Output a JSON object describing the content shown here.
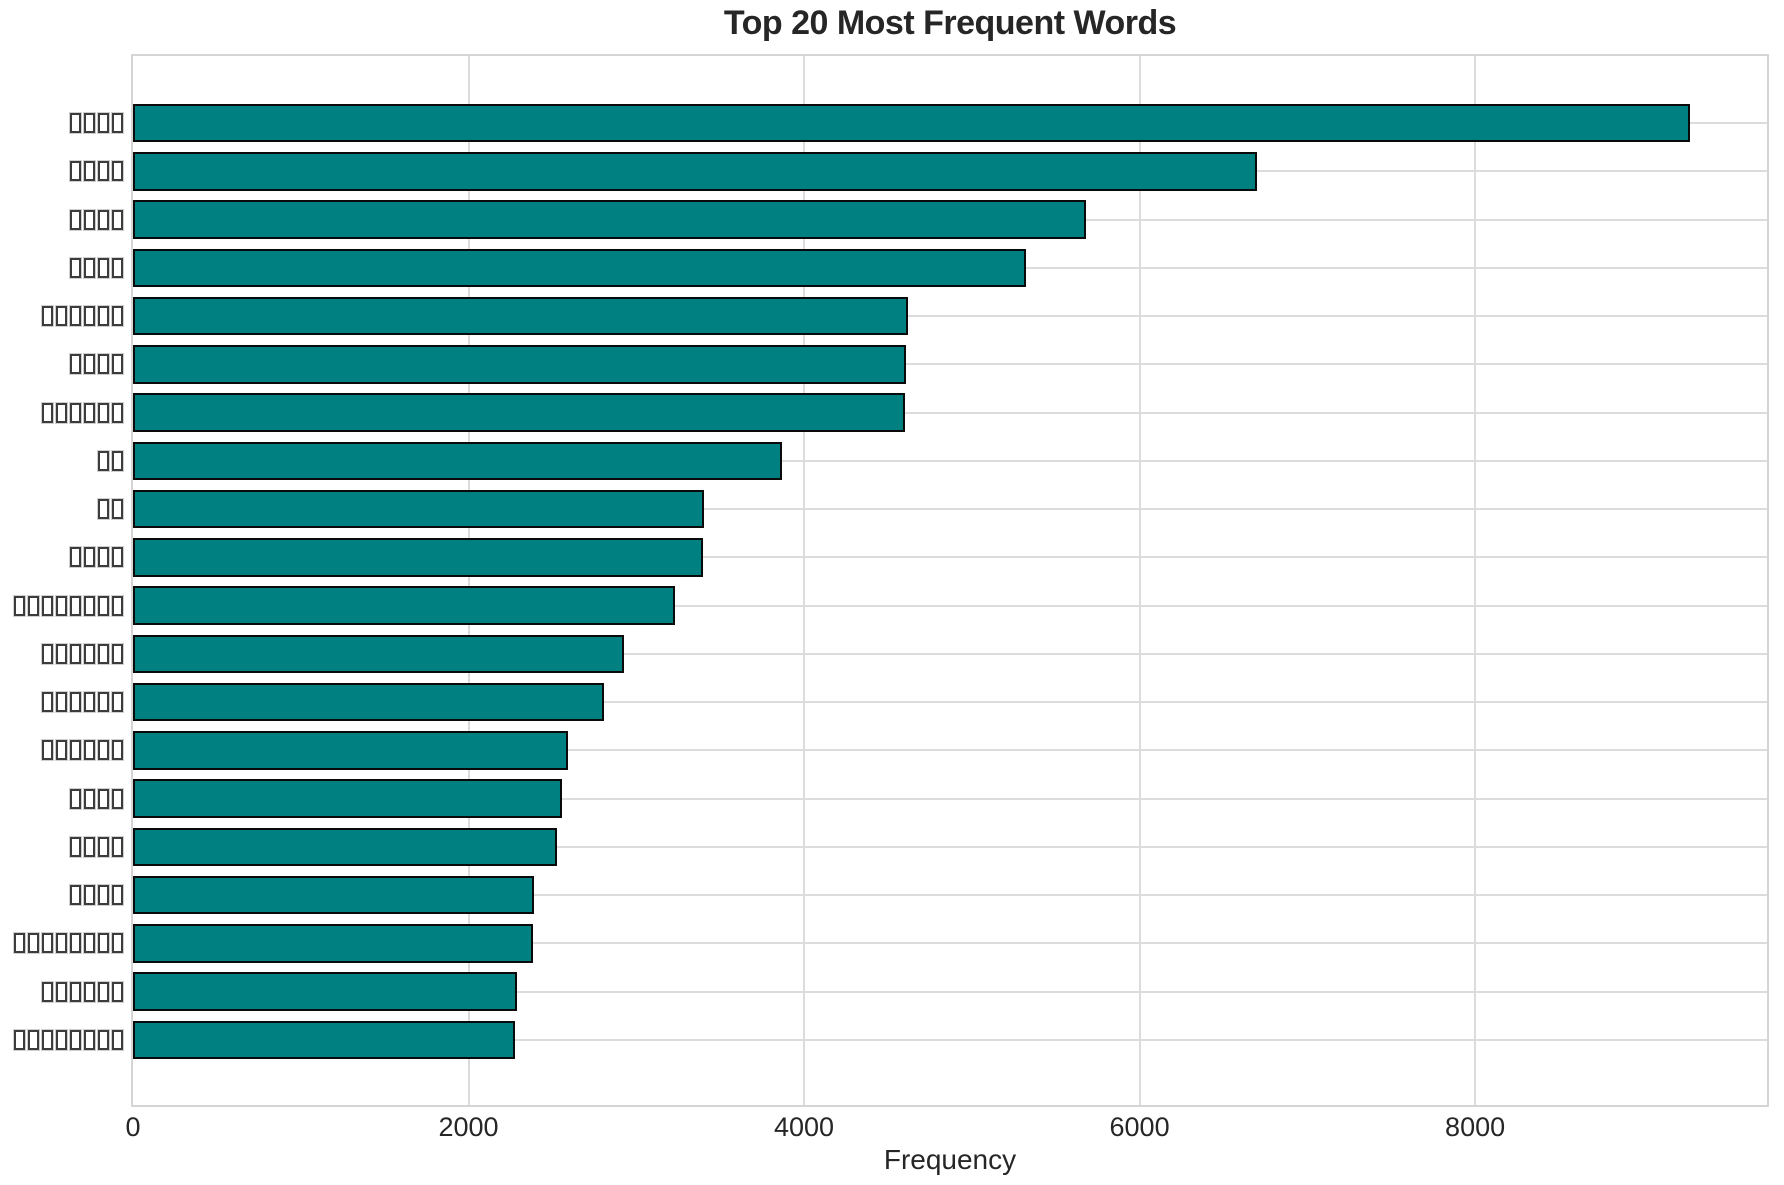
{
  "chart_data": {
    "type": "bar",
    "orientation": "horizontal",
    "title": "Top 20 Most Frequent Words",
    "xlabel": "Frequency",
    "ylabel": "",
    "x_ticks": [
      0,
      2000,
      4000,
      6000,
      8000
    ],
    "xlim": [
      0,
      9740
    ],
    "grid": true,
    "legend": false,
    "colors": {
      "bar_fill": "#008080",
      "bar_edge": "#0a0a0a",
      "grid": "#dcdcdc",
      "axes_border": "#d5d5d5",
      "text": "#262626",
      "background": "#ffffff"
    },
    "categories": [
      "□□□□",
      "□□□□",
      "□□□□",
      "□□□□",
      "□□□□□□",
      "□□□□",
      "□□□□□□",
      "□□",
      "□□",
      "□□□□",
      "□□□□□□□□",
      "□□□□□□",
      "□□□□□□",
      "□□□□□□",
      "□□□□",
      "□□□□",
      "□□□□",
      "□□□□□□□□",
      "□□□□□□",
      "□□□□□□□□"
    ],
    "values": [
      9280,
      6700,
      5680,
      5325,
      4620,
      4610,
      4600,
      3870,
      3405,
      3400,
      3230,
      2925,
      2810,
      2590,
      2560,
      2530,
      2390,
      2385,
      2290,
      2275
    ]
  }
}
